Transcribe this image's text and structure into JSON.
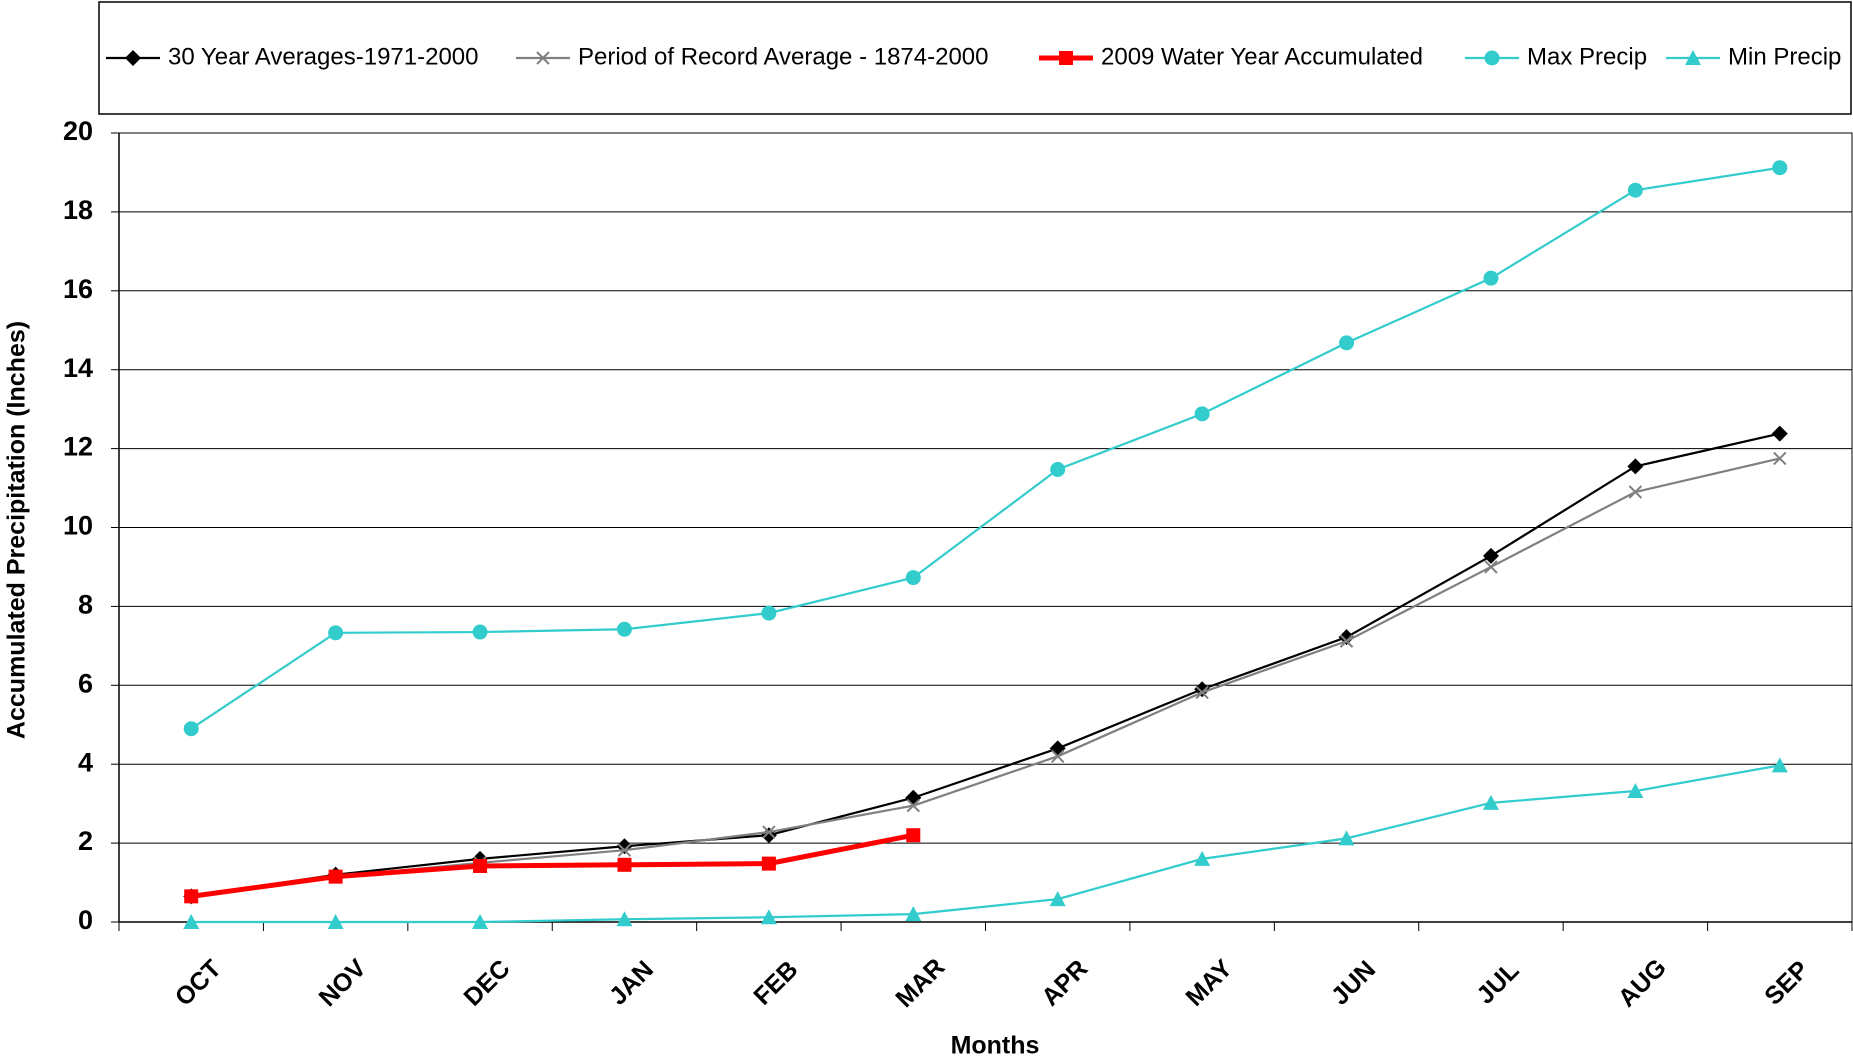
{
  "chart_data": {
    "type": "line",
    "x_label": "Months",
    "y_label": "Accumulated Precipitation (Inches)",
    "categories": [
      "OCT",
      "NOV",
      "DEC",
      "JAN",
      "FEB",
      "MAR",
      "APR",
      "MAY",
      "JUN",
      "JUL",
      "AUG",
      "SEP"
    ],
    "ylim": [
      0,
      20
    ],
    "yticks": [
      0,
      2,
      4,
      6,
      8,
      10,
      12,
      14,
      16,
      18,
      20
    ],
    "grid": true,
    "legend": "top",
    "series": [
      {
        "name": "30 Year Averages-1971-2000",
        "color": "#000000",
        "marker": "diamond",
        "values": [
          0.65,
          1.2,
          1.6,
          1.92,
          2.2,
          3.15,
          4.4,
          5.9,
          7.22,
          9.28,
          11.55,
          12.38
        ]
      },
      {
        "name": "Period of Record Average - 1874-2000",
        "color": "#808080",
        "marker": "x",
        "values": [
          0.65,
          1.15,
          1.5,
          1.82,
          2.28,
          2.95,
          4.2,
          5.82,
          7.12,
          9.0,
          10.9,
          11.75
        ]
      },
      {
        "name": "2009 Water Year Accumulated",
        "color": "#ff0000",
        "marker": "square",
        "values": [
          0.65,
          1.15,
          1.42,
          1.45,
          1.48,
          2.2,
          null,
          null,
          null,
          null,
          null,
          null
        ]
      },
      {
        "name": "Max Precip",
        "color": "#33cccc",
        "marker": "circle",
        "values": [
          4.9,
          7.33,
          7.35,
          7.42,
          7.83,
          8.73,
          11.47,
          12.88,
          14.68,
          16.32,
          18.55,
          19.12
        ]
      },
      {
        "name": "Min Precip",
        "color": "#33cccc",
        "marker": "triangle",
        "values": [
          0,
          0,
          0,
          0.07,
          0.12,
          0.2,
          0.58,
          1.6,
          2.12,
          3.02,
          3.32,
          3.97
        ]
      }
    ]
  }
}
